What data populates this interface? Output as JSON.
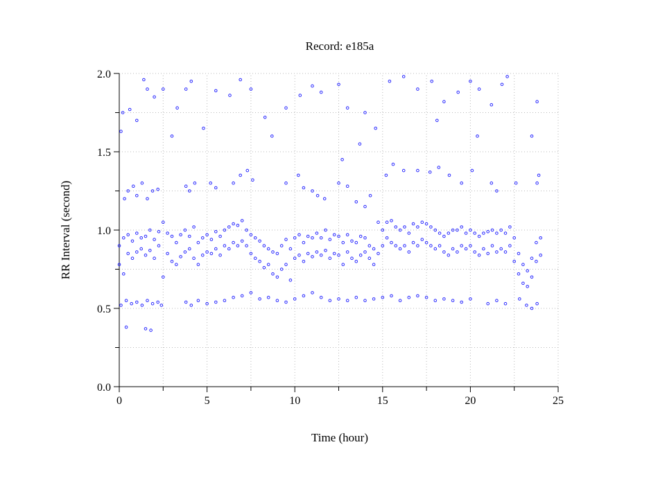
{
  "chart_data": {
    "type": "scatter",
    "title": "Record:  e185a",
    "xlabel": "Time (hour)",
    "ylabel": "RR Interval (second)",
    "xlim": [
      0,
      25
    ],
    "ylim": [
      0,
      2.0
    ],
    "xticks": [
      "0",
      "5",
      "10",
      "15",
      "20",
      "25"
    ],
    "yticks": [
      "0.0",
      "0.5",
      "1.0",
      "1.5",
      "2.0"
    ],
    "grid": true,
    "marker": "open-circle",
    "color": "#2a2aff",
    "points": [
      [
        0,
        0.78
      ],
      [
        0,
        0.9
      ],
      [
        0.25,
        0.72
      ],
      [
        0.25,
        0.95
      ],
      [
        0.5,
        0.85
      ],
      [
        0.5,
        0.97
      ],
      [
        0.75,
        0.82
      ],
      [
        0.75,
        0.93
      ],
      [
        1,
        0.86
      ],
      [
        1,
        0.98
      ],
      [
        1.25,
        0.88
      ],
      [
        1.25,
        0.95
      ],
      [
        1.5,
        0.84
      ],
      [
        1.5,
        0.96
      ],
      [
        1.75,
        0.87
      ],
      [
        1.75,
        1.0
      ],
      [
        2,
        0.82
      ],
      [
        2,
        0.94
      ],
      [
        2.25,
        0.9
      ],
      [
        2.25,
        0.99
      ],
      [
        2.5,
        0.7
      ],
      [
        2.5,
        1.05
      ],
      [
        2.75,
        0.85
      ],
      [
        2.75,
        0.98
      ],
      [
        3,
        0.8
      ],
      [
        3,
        0.96
      ],
      [
        3.25,
        0.78
      ],
      [
        3.25,
        0.92
      ],
      [
        3.5,
        0.83
      ],
      [
        3.5,
        0.97
      ],
      [
        3.75,
        0.86
      ],
      [
        3.75,
        1.0
      ],
      [
        4,
        0.88
      ],
      [
        4,
        0.96
      ],
      [
        4.25,
        0.82
      ],
      [
        4.25,
        1.02
      ],
      [
        4.5,
        0.78
      ],
      [
        4.5,
        0.92
      ],
      [
        4.75,
        0.84
      ],
      [
        4.75,
        0.95
      ],
      [
        5,
        0.86
      ],
      [
        5,
        0.97
      ],
      [
        5.25,
        0.85
      ],
      [
        5.25,
        0.94
      ],
      [
        5.5,
        0.88
      ],
      [
        5.5,
        0.99
      ],
      [
        5.75,
        0.84
      ],
      [
        5.75,
        0.96
      ],
      [
        6,
        0.9
      ],
      [
        6,
        1.0
      ],
      [
        6.25,
        0.88
      ],
      [
        6.25,
        1.02
      ],
      [
        6.5,
        0.92
      ],
      [
        6.5,
        1.04
      ],
      [
        6.75,
        0.9
      ],
      [
        6.75,
        1.03
      ],
      [
        7,
        0.93
      ],
      [
        7,
        1.06
      ],
      [
        7.25,
        0.9
      ],
      [
        7.25,
        1.0
      ],
      [
        7.5,
        0.85
      ],
      [
        7.5,
        0.97
      ],
      [
        7.75,
        0.82
      ],
      [
        7.75,
        0.95
      ],
      [
        8,
        0.8
      ],
      [
        8,
        0.93
      ],
      [
        8.25,
        0.76
      ],
      [
        8.25,
        0.9
      ],
      [
        8.5,
        0.78
      ],
      [
        8.5,
        0.88
      ],
      [
        8.75,
        0.72
      ],
      [
        8.75,
        0.86
      ],
      [
        9,
        0.7
      ],
      [
        9,
        0.85
      ],
      [
        9.25,
        0.75
      ],
      [
        9.25,
        0.9
      ],
      [
        9.5,
        0.78
      ],
      [
        9.5,
        0.94
      ],
      [
        9.75,
        0.68
      ],
      [
        9.75,
        0.88
      ],
      [
        10,
        0.82
      ],
      [
        10,
        0.95
      ],
      [
        10.25,
        0.84
      ],
      [
        10.25,
        0.97
      ],
      [
        10.5,
        0.8
      ],
      [
        10.5,
        0.92
      ],
      [
        10.75,
        0.85
      ],
      [
        10.75,
        0.96
      ],
      [
        11,
        0.83
      ],
      [
        11,
        0.95
      ],
      [
        11.25,
        0.86
      ],
      [
        11.25,
        0.98
      ],
      [
        11.5,
        0.84
      ],
      [
        11.5,
        0.95
      ],
      [
        11.75,
        0.87
      ],
      [
        11.75,
        1.0
      ],
      [
        12,
        0.82
      ],
      [
        12,
        0.94
      ],
      [
        12.25,
        0.85
      ],
      [
        12.25,
        0.97
      ],
      [
        12.5,
        0.84
      ],
      [
        12.5,
        0.96
      ],
      [
        12.75,
        0.78
      ],
      [
        12.75,
        0.92
      ],
      [
        13,
        0.86
      ],
      [
        13,
        0.97
      ],
      [
        13.25,
        0.82
      ],
      [
        13.25,
        0.93
      ],
      [
        13.5,
        0.8
      ],
      [
        13.5,
        0.92
      ],
      [
        13.75,
        0.84
      ],
      [
        13.75,
        0.96
      ],
      [
        14,
        0.86
      ],
      [
        14,
        0.95
      ],
      [
        14.25,
        0.82
      ],
      [
        14.25,
        0.9
      ],
      [
        14.5,
        0.78
      ],
      [
        14.5,
        0.88
      ],
      [
        14.75,
        0.85
      ],
      [
        14.75,
        1.05
      ],
      [
        15,
        0.9
      ],
      [
        15,
        1.0
      ],
      [
        15.25,
        0.95
      ],
      [
        15.25,
        1.05
      ],
      [
        15.5,
        0.92
      ],
      [
        15.5,
        1.06
      ],
      [
        15.75,
        0.9
      ],
      [
        15.75,
        1.02
      ],
      [
        16,
        0.88
      ],
      [
        16,
        1.0
      ],
      [
        16.25,
        0.9
      ],
      [
        16.25,
        1.02
      ],
      [
        16.5,
        0.86
      ],
      [
        16.5,
        0.98
      ],
      [
        16.75,
        0.92
      ],
      [
        16.75,
        1.04
      ],
      [
        17,
        0.9
      ],
      [
        17,
        1.02
      ],
      [
        17.25,
        0.94
      ],
      [
        17.25,
        1.05
      ],
      [
        17.5,
        0.92
      ],
      [
        17.5,
        1.04
      ],
      [
        17.75,
        0.9
      ],
      [
        17.75,
        1.02
      ],
      [
        18,
        0.88
      ],
      [
        18,
        1.0
      ],
      [
        18.25,
        0.9
      ],
      [
        18.25,
        0.98
      ],
      [
        18.5,
        0.86
      ],
      [
        18.5,
        0.96
      ],
      [
        18.75,
        0.84
      ],
      [
        18.75,
        0.98
      ],
      [
        19,
        0.88
      ],
      [
        19,
        1.0
      ],
      [
        19.25,
        0.86
      ],
      [
        19.25,
        1.0
      ],
      [
        19.5,
        0.9
      ],
      [
        19.5,
        1.02
      ],
      [
        19.75,
        0.88
      ],
      [
        19.75,
        0.98
      ],
      [
        20,
        0.9
      ],
      [
        20,
        1.0
      ],
      [
        20.25,
        0.86
      ],
      [
        20.25,
        0.98
      ],
      [
        20.5,
        0.84
      ],
      [
        20.5,
        0.96
      ],
      [
        20.75,
        0.88
      ],
      [
        20.75,
        0.98
      ],
      [
        21,
        0.85
      ],
      [
        21,
        0.99
      ],
      [
        21.25,
        0.9
      ],
      [
        21.25,
        1.0
      ],
      [
        21.5,
        0.86
      ],
      [
        21.5,
        0.98
      ],
      [
        21.75,
        0.88
      ],
      [
        21.75,
        1.0
      ],
      [
        22,
        0.86
      ],
      [
        22,
        0.98
      ],
      [
        22.25,
        0.9
      ],
      [
        22.25,
        1.02
      ],
      [
        22.5,
        0.8
      ],
      [
        22.5,
        0.95
      ],
      [
        22.75,
        0.72
      ],
      [
        22.75,
        0.85
      ],
      [
        23,
        0.66
      ],
      [
        23,
        0.78
      ],
      [
        23.25,
        0.64
      ],
      [
        23.25,
        0.74
      ],
      [
        23.5,
        0.7
      ],
      [
        23.5,
        0.82
      ],
      [
        23.75,
        0.8
      ],
      [
        23.75,
        0.92
      ],
      [
        24,
        0.84
      ],
      [
        24,
        0.95
      ],
      [
        0.1,
        0.52
      ],
      [
        0.4,
        0.55
      ],
      [
        0.7,
        0.53
      ],
      [
        1,
        0.54
      ],
      [
        1.3,
        0.52
      ],
      [
        1.6,
        0.55
      ],
      [
        1.9,
        0.53
      ],
      [
        2.2,
        0.54
      ],
      [
        2.4,
        0.52
      ],
      [
        3.8,
        0.54
      ],
      [
        4.1,
        0.52
      ],
      [
        4.5,
        0.55
      ],
      [
        5,
        0.53
      ],
      [
        5.5,
        0.54
      ],
      [
        6,
        0.55
      ],
      [
        6.5,
        0.57
      ],
      [
        7,
        0.58
      ],
      [
        7.5,
        0.6
      ],
      [
        8,
        0.56
      ],
      [
        8.5,
        0.57
      ],
      [
        9,
        0.55
      ],
      [
        9.5,
        0.54
      ],
      [
        10,
        0.56
      ],
      [
        10.5,
        0.58
      ],
      [
        11,
        0.6
      ],
      [
        11.5,
        0.57
      ],
      [
        12,
        0.55
      ],
      [
        12.5,
        0.56
      ],
      [
        13,
        0.55
      ],
      [
        13.5,
        0.57
      ],
      [
        14,
        0.55
      ],
      [
        14.5,
        0.56
      ],
      [
        15,
        0.57
      ],
      [
        15.5,
        0.58
      ],
      [
        16,
        0.55
      ],
      [
        16.5,
        0.57
      ],
      [
        17,
        0.58
      ],
      [
        17.5,
        0.57
      ],
      [
        18,
        0.55
      ],
      [
        18.5,
        0.56
      ],
      [
        19,
        0.55
      ],
      [
        19.5,
        0.54
      ],
      [
        20,
        0.56
      ],
      [
        21,
        0.53
      ],
      [
        21.5,
        0.55
      ],
      [
        22,
        0.53
      ],
      [
        22.8,
        0.56
      ],
      [
        23.2,
        0.52
      ],
      [
        23.5,
        0.5
      ],
      [
        23.8,
        0.53
      ],
      [
        0.4,
        0.38
      ],
      [
        1.5,
        0.37
      ],
      [
        1.8,
        0.36
      ],
      [
        0.3,
        1.2
      ],
      [
        0.5,
        1.25
      ],
      [
        0.8,
        1.28
      ],
      [
        1,
        1.22
      ],
      [
        1.3,
        1.3
      ],
      [
        1.6,
        1.2
      ],
      [
        1.9,
        1.25
      ],
      [
        2.2,
        1.26
      ],
      [
        3.8,
        1.28
      ],
      [
        4,
        1.25
      ],
      [
        4.3,
        1.3
      ],
      [
        5.2,
        1.3
      ],
      [
        5.5,
        1.27
      ],
      [
        6.5,
        1.3
      ],
      [
        6.9,
        1.35
      ],
      [
        7.3,
        1.38
      ],
      [
        7.6,
        1.32
      ],
      [
        9.5,
        1.3
      ],
      [
        10.2,
        1.35
      ],
      [
        10.5,
        1.27
      ],
      [
        11,
        1.25
      ],
      [
        11.3,
        1.22
      ],
      [
        11.7,
        1.2
      ],
      [
        12.5,
        1.3
      ],
      [
        13,
        1.28
      ],
      [
        13.5,
        1.18
      ],
      [
        14,
        1.15
      ],
      [
        14.3,
        1.22
      ],
      [
        15.2,
        1.35
      ],
      [
        15.6,
        1.42
      ],
      [
        16.2,
        1.38
      ],
      [
        17,
        1.38
      ],
      [
        17.7,
        1.37
      ],
      [
        18.2,
        1.4
      ],
      [
        18.8,
        1.35
      ],
      [
        19.5,
        1.3
      ],
      [
        20.1,
        1.38
      ],
      [
        21.2,
        1.3
      ],
      [
        21.5,
        1.25
      ],
      [
        22.6,
        1.3
      ],
      [
        23.8,
        1.3
      ],
      [
        23.9,
        1.35
      ],
      [
        0.2,
        1.75
      ],
      [
        0.6,
        1.77
      ],
      [
        1,
        1.7
      ],
      [
        1.4,
        1.96
      ],
      [
        1.6,
        1.9
      ],
      [
        2,
        1.85
      ],
      [
        2.5,
        1.9
      ],
      [
        3.3,
        1.78
      ],
      [
        3.8,
        1.9
      ],
      [
        4.1,
        1.95
      ],
      [
        4.8,
        1.65
      ],
      [
        5.5,
        1.89
      ],
      [
        6.3,
        1.86
      ],
      [
        6.9,
        1.96
      ],
      [
        7.5,
        1.9
      ],
      [
        8.3,
        1.72
      ],
      [
        9.5,
        1.78
      ],
      [
        10.3,
        1.86
      ],
      [
        11,
        1.92
      ],
      [
        11.5,
        1.88
      ],
      [
        12.5,
        1.93
      ],
      [
        13,
        1.78
      ],
      [
        14,
        1.75
      ],
      [
        14.6,
        1.65
      ],
      [
        15.4,
        1.95
      ],
      [
        16.2,
        1.98
      ],
      [
        17,
        1.9
      ],
      [
        17.8,
        1.95
      ],
      [
        18.5,
        1.82
      ],
      [
        19.3,
        1.88
      ],
      [
        20,
        1.95
      ],
      [
        20.5,
        1.9
      ],
      [
        21.2,
        1.8
      ],
      [
        21.8,
        1.93
      ],
      [
        22.1,
        1.98
      ],
      [
        23.5,
        1.6
      ],
      [
        23.8,
        1.82
      ],
      [
        3,
        1.6
      ],
      [
        8.7,
        1.6
      ],
      [
        13.7,
        1.55
      ],
      [
        18.1,
        1.7
      ],
      [
        0.1,
        1.63
      ],
      [
        12.7,
        1.45
      ],
      [
        20.4,
        1.6
      ]
    ]
  }
}
